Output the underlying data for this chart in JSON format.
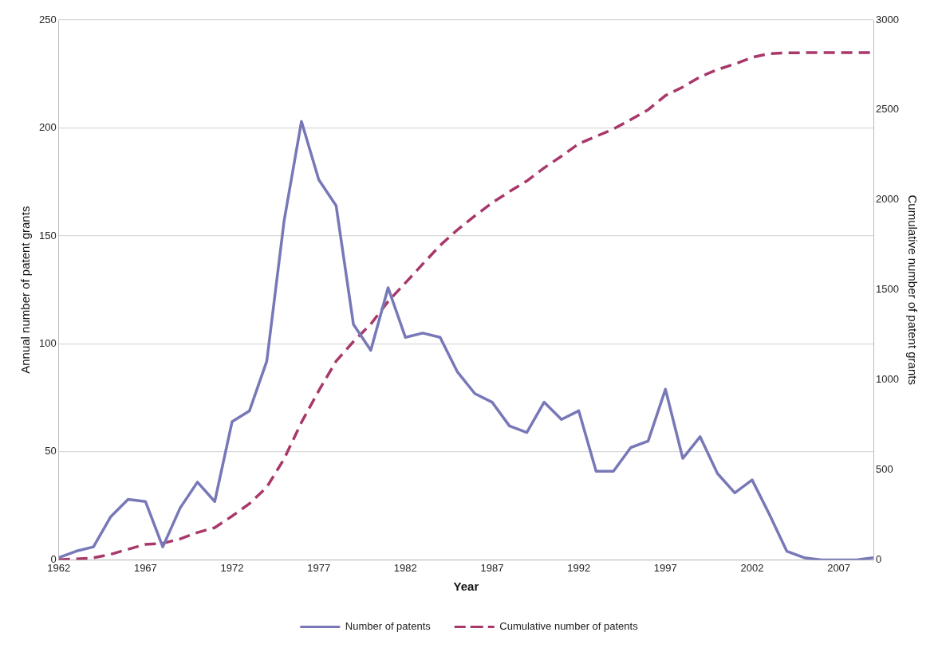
{
  "chart_data": {
    "type": "line",
    "xlabel": "Year",
    "ylabel": "Annual number of patent grants",
    "y2label": "Cumulative number of patent grants",
    "x": [
      1962,
      1963,
      1964,
      1965,
      1966,
      1967,
      1968,
      1969,
      1970,
      1971,
      1972,
      1973,
      1974,
      1975,
      1976,
      1977,
      1978,
      1979,
      1980,
      1981,
      1982,
      1983,
      1984,
      1985,
      1986,
      1987,
      1988,
      1989,
      1990,
      1991,
      1992,
      1993,
      1994,
      1995,
      1996,
      1997,
      1998,
      1999,
      2000,
      2001,
      2002,
      2003,
      2004,
      2005,
      2006,
      2007,
      2008,
      2009
    ],
    "series": [
      {
        "name": "Number of patents",
        "color": "#7878b8",
        "line_style": "solid",
        "values": [
          1,
          4,
          6,
          20,
          28,
          27,
          6,
          24,
          36,
          27,
          64,
          69,
          92,
          157,
          203,
          176,
          164,
          109,
          97,
          126,
          103,
          105,
          103,
          87,
          77,
          73,
          62,
          59,
          73,
          65,
          69,
          41,
          41,
          52,
          55,
          79,
          47,
          57,
          40,
          31,
          37,
          21,
          4,
          1,
          0,
          0,
          0,
          1
        ]
      },
      {
        "name": "Cumulative number of patents",
        "color": "#a8386a",
        "line_style": "dashed",
        "axis": "y2",
        "values": [
          1,
          5,
          11,
          31,
          59,
          86,
          92,
          116,
          152,
          179,
          243,
          312,
          404,
          561,
          764,
          940,
          1104,
          1213,
          1310,
          1436,
          1539,
          1644,
          1747,
          1834,
          1911,
          1984,
          2046,
          2105,
          2178,
          2243,
          2312,
          2353,
          2394,
          2446,
          2501,
          2580,
          2627,
          2684,
          2724,
          2755,
          2792,
          2813,
          2817,
          2818,
          2818,
          2818,
          2818,
          2819
        ]
      }
    ],
    "xlim": [
      1962,
      2009
    ],
    "xticks": [
      1962,
      1967,
      1972,
      1977,
      1982,
      1987,
      1992,
      1997,
      2002,
      2007
    ],
    "ylim": [
      0,
      250
    ],
    "yticks": [
      0,
      50,
      100,
      150,
      200,
      250
    ],
    "y2lim": [
      0,
      3000
    ],
    "y2ticks": [
      0,
      500,
      1000,
      1500,
      2000,
      2500,
      3000
    ],
    "grid": "y",
    "legend": "bottom",
    "marker": "none"
  }
}
